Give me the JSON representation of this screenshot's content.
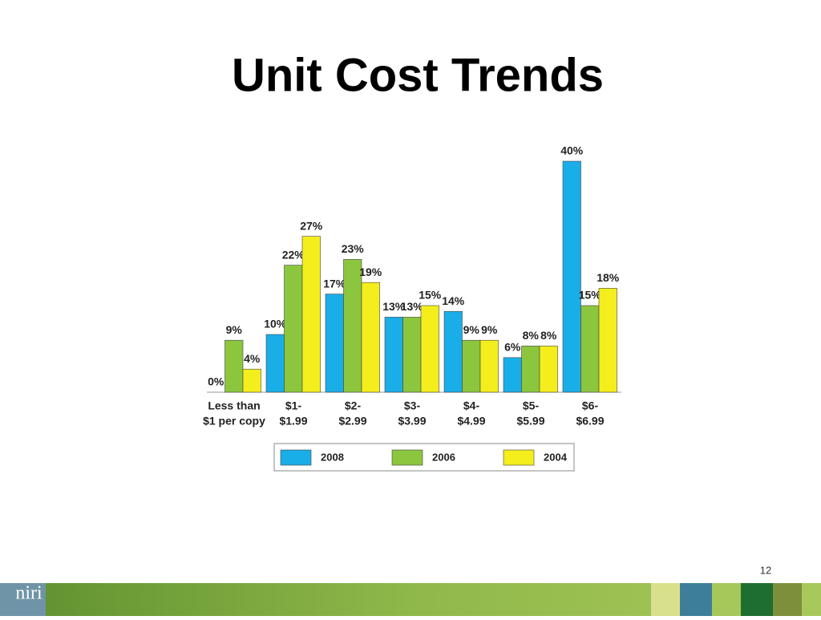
{
  "title": "Unit Cost Trends",
  "slide_number": "12",
  "logo": "niri",
  "chart_data": {
    "type": "bar",
    "categories": [
      [
        "Less than",
        "$1 per copy"
      ],
      [
        "$1-",
        "$1.99"
      ],
      [
        "$2-",
        "$2.99"
      ],
      [
        "$3-",
        "$3.99"
      ],
      [
        "$4-",
        "$4.99"
      ],
      [
        "$5-",
        "$5.99"
      ],
      [
        "$6-",
        "$6.99"
      ]
    ],
    "series": [
      {
        "name": "2008",
        "color": "#1aaee8",
        "values": [
          0,
          10,
          17,
          13,
          14,
          6,
          40
        ],
        "value_labels": [
          "0%",
          "10%",
          "17%",
          "13%",
          "14%",
          "6%",
          "40%"
        ]
      },
      {
        "name": "2006",
        "color": "#8cc63e",
        "values": [
          9,
          22,
          23,
          13,
          9,
          8,
          15
        ],
        "value_labels": [
          "9%",
          "22%",
          "23%",
          "13%",
          "9%",
          "8%",
          "15%"
        ]
      },
      {
        "name": "2004",
        "color": "#f4ee1c",
        "values": [
          4,
          27,
          19,
          15,
          9,
          8,
          18
        ],
        "value_labels": [
          "4%",
          "27%",
          "19%",
          "15%",
          "9%",
          "8%",
          "18%"
        ]
      }
    ],
    "legend": "bottom"
  }
}
